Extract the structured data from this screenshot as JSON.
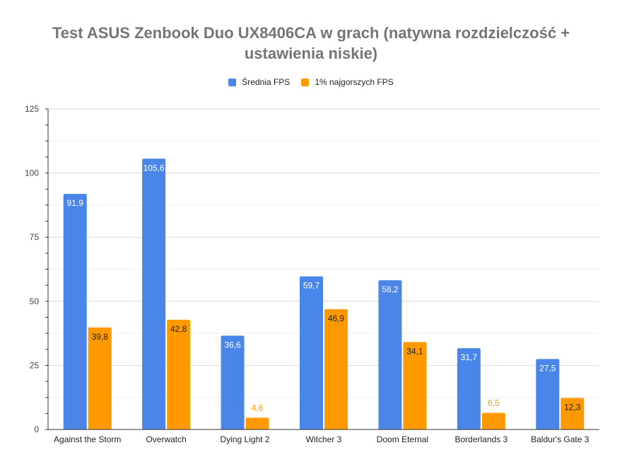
{
  "chart_data": {
    "type": "bar",
    "title_lines": [
      "Test ASUS Zenbook Duo UX8406CA w grach (natywna rozdzielczość +",
      "ustawienia niskie)"
    ],
    "categories": [
      "Against the Storm",
      "Overwatch",
      "Dying Light 2",
      "Witcher 3",
      "Doom Eternal",
      "Borderlands 3",
      "Baldur's Gate 3"
    ],
    "series": [
      {
        "name": "Średnia FPS",
        "color": "#4a86e8",
        "values": [
          91.9,
          105.6,
          36.6,
          59.7,
          58.2,
          31.7,
          27.5
        ],
        "labels": [
          "91,9",
          "105,6",
          "36,6",
          "59,7",
          "58,2",
          "31,7",
          "27,5"
        ]
      },
      {
        "name": "1% najgorszych FPS",
        "color": "#ff9900",
        "values": [
          39.8,
          42.8,
          4.6,
          46.9,
          34.1,
          6.5,
          12.3
        ],
        "labels": [
          "39,8",
          "42,8",
          "4,6",
          "46,9",
          "34,1",
          "6,5",
          "12,3"
        ]
      }
    ],
    "yticks": [
      "0",
      "25",
      "50",
      "75",
      "100",
      "125"
    ],
    "ylim": [
      0,
      125
    ],
    "grid": true,
    "legend_position": "top-center"
  }
}
